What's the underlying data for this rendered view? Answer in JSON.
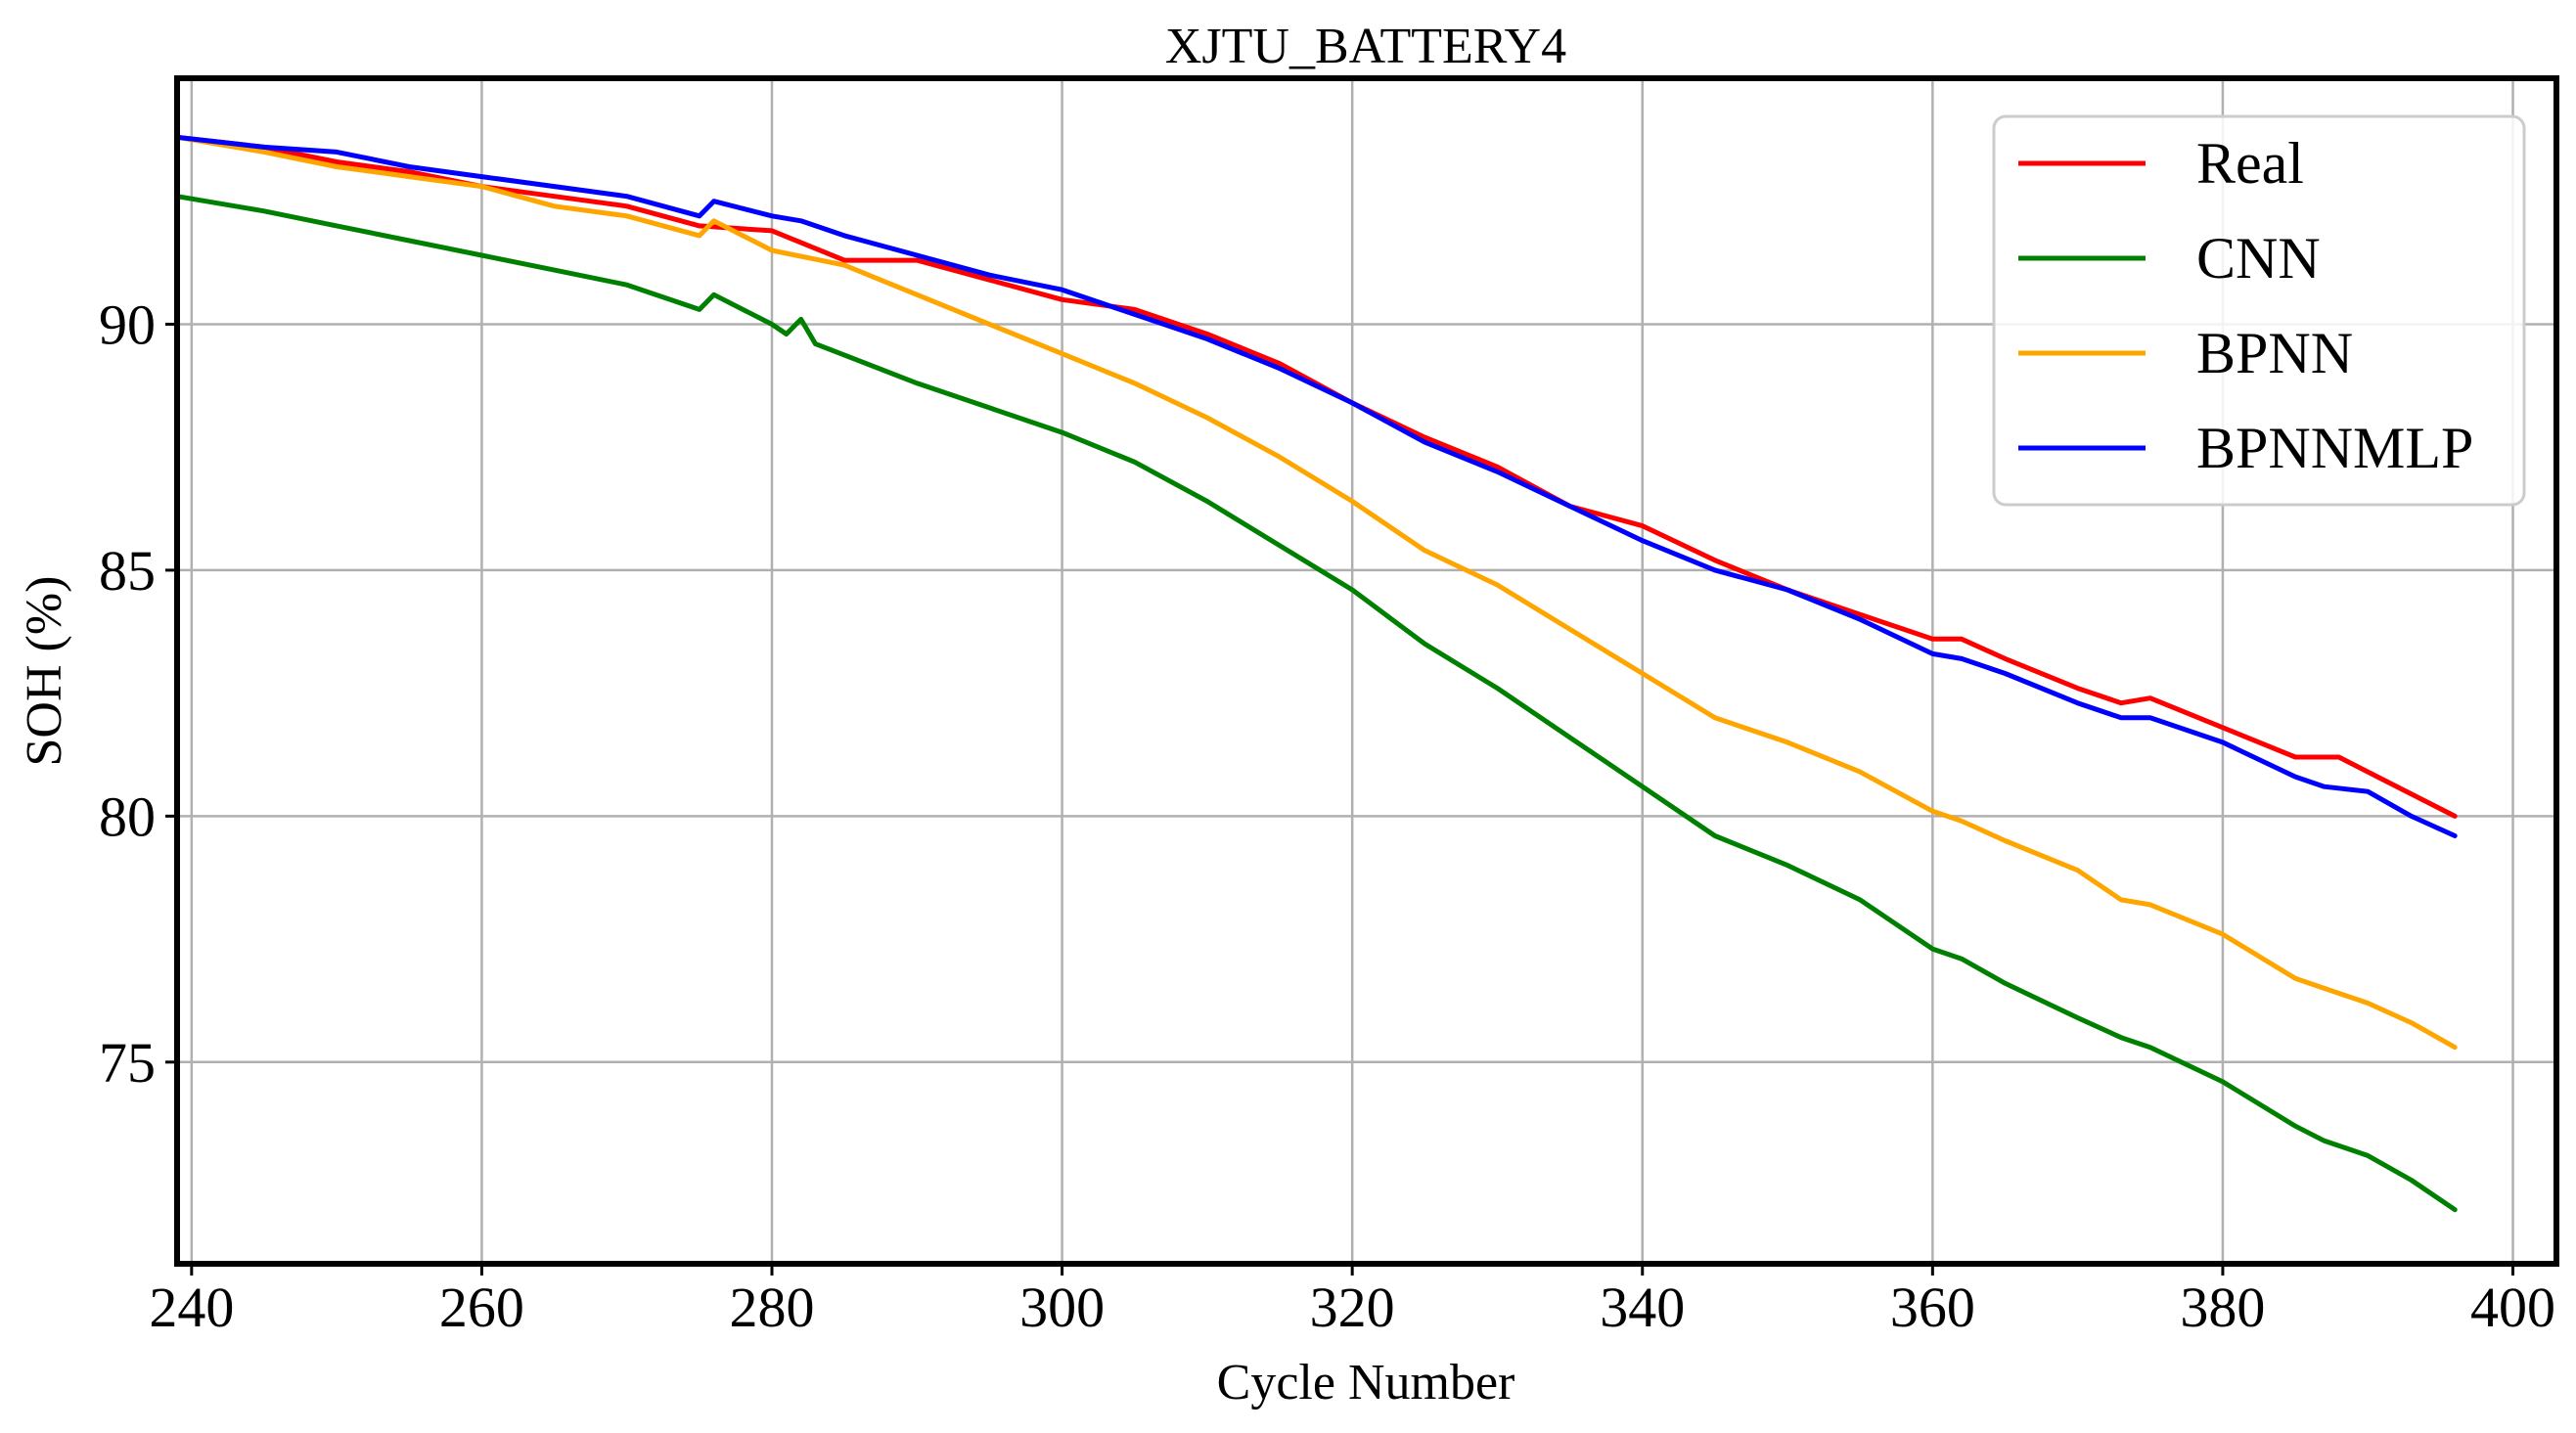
{
  "chart_data": {
    "type": "line",
    "title": "XJTU_BATTERY4",
    "xlabel": "Cycle Number",
    "ylabel": "SOH (%)",
    "xlim": [
      239,
      403
    ],
    "ylim": [
      70.9,
      95
    ],
    "xticks": [
      240,
      260,
      280,
      300,
      320,
      340,
      360,
      380,
      400
    ],
    "yticks": [
      75,
      80,
      85,
      90
    ],
    "grid": true,
    "legend_position": "top-right",
    "series": [
      {
        "name": "Real",
        "color": "#ff0000",
        "points": [
          [
            239,
            93.8
          ],
          [
            245,
            93.6
          ],
          [
            250,
            93.3
          ],
          [
            255,
            93.1
          ],
          [
            260,
            92.8
          ],
          [
            265,
            92.6
          ],
          [
            270,
            92.4
          ],
          [
            275,
            92.0
          ],
          [
            280,
            91.9
          ],
          [
            285,
            91.3
          ],
          [
            290,
            91.3
          ],
          [
            295,
            90.9
          ],
          [
            300,
            90.5
          ],
          [
            305,
            90.3
          ],
          [
            310,
            89.8
          ],
          [
            315,
            89.2
          ],
          [
            320,
            88.4
          ],
          [
            325,
            87.7
          ],
          [
            330,
            87.1
          ],
          [
            335,
            86.3
          ],
          [
            340,
            85.9
          ],
          [
            345,
            85.2
          ],
          [
            350,
            84.6
          ],
          [
            355,
            84.1
          ],
          [
            360,
            83.6
          ],
          [
            362,
            83.6
          ],
          [
            365,
            83.2
          ],
          [
            370,
            82.6
          ],
          [
            373,
            82.3
          ],
          [
            375,
            82.4
          ],
          [
            380,
            81.8
          ],
          [
            385,
            81.2
          ],
          [
            388,
            81.2
          ],
          [
            390,
            80.9
          ],
          [
            396,
            80.0
          ]
        ]
      },
      {
        "name": "CNN",
        "color": "#008000",
        "points": [
          [
            239,
            92.6
          ],
          [
            245,
            92.3
          ],
          [
            250,
            92.0
          ],
          [
            255,
            91.7
          ],
          [
            260,
            91.4
          ],
          [
            265,
            91.1
          ],
          [
            270,
            90.8
          ],
          [
            275,
            90.3
          ],
          [
            276,
            90.6
          ],
          [
            280,
            90.0
          ],
          [
            281,
            89.8
          ],
          [
            282,
            90.1
          ],
          [
            283,
            89.6
          ],
          [
            290,
            88.8
          ],
          [
            295,
            88.3
          ],
          [
            300,
            87.8
          ],
          [
            305,
            87.2
          ],
          [
            310,
            86.4
          ],
          [
            315,
            85.5
          ],
          [
            320,
            84.6
          ],
          [
            325,
            83.5
          ],
          [
            330,
            82.6
          ],
          [
            335,
            81.6
          ],
          [
            340,
            80.6
          ],
          [
            345,
            79.6
          ],
          [
            350,
            79.0
          ],
          [
            355,
            78.3
          ],
          [
            360,
            77.3
          ],
          [
            362,
            77.1
          ],
          [
            365,
            76.6
          ],
          [
            370,
            75.9
          ],
          [
            373,
            75.5
          ],
          [
            375,
            75.3
          ],
          [
            380,
            74.6
          ],
          [
            385,
            73.7
          ],
          [
            387,
            73.4
          ],
          [
            390,
            73.1
          ],
          [
            393,
            72.6
          ],
          [
            396,
            72.0
          ]
        ]
      },
      {
        "name": "BPNN",
        "color": "#ffa500",
        "points": [
          [
            239,
            93.8
          ],
          [
            245,
            93.5
          ],
          [
            250,
            93.2
          ],
          [
            255,
            93.0
          ],
          [
            260,
            92.8
          ],
          [
            265,
            92.4
          ],
          [
            270,
            92.2
          ],
          [
            275,
            91.8
          ],
          [
            276,
            92.1
          ],
          [
            280,
            91.5
          ],
          [
            285,
            91.2
          ],
          [
            290,
            90.6
          ],
          [
            295,
            90.0
          ],
          [
            300,
            89.4
          ],
          [
            305,
            88.8
          ],
          [
            310,
            88.1
          ],
          [
            315,
            87.3
          ],
          [
            320,
            86.4
          ],
          [
            325,
            85.4
          ],
          [
            330,
            84.7
          ],
          [
            335,
            83.8
          ],
          [
            340,
            82.9
          ],
          [
            345,
            82.0
          ],
          [
            350,
            81.5
          ],
          [
            355,
            80.9
          ],
          [
            360,
            80.1
          ],
          [
            362,
            79.9
          ],
          [
            365,
            79.5
          ],
          [
            370,
            78.9
          ],
          [
            373,
            78.3
          ],
          [
            375,
            78.2
          ],
          [
            380,
            77.6
          ],
          [
            385,
            76.7
          ],
          [
            387,
            76.5
          ],
          [
            390,
            76.2
          ],
          [
            393,
            75.8
          ],
          [
            396,
            75.3
          ]
        ]
      },
      {
        "name": "BPNNMLP",
        "color": "#0000ff",
        "points": [
          [
            239,
            93.8
          ],
          [
            245,
            93.6
          ],
          [
            250,
            93.5
          ],
          [
            255,
            93.2
          ],
          [
            260,
            93.0
          ],
          [
            265,
            92.8
          ],
          [
            270,
            92.6
          ],
          [
            275,
            92.2
          ],
          [
            276,
            92.5
          ],
          [
            280,
            92.2
          ],
          [
            282,
            92.1
          ],
          [
            285,
            91.8
          ],
          [
            290,
            91.4
          ],
          [
            295,
            91.0
          ],
          [
            300,
            90.7
          ],
          [
            305,
            90.2
          ],
          [
            310,
            89.7
          ],
          [
            315,
            89.1
          ],
          [
            320,
            88.4
          ],
          [
            325,
            87.6
          ],
          [
            330,
            87.0
          ],
          [
            335,
            86.3
          ],
          [
            340,
            85.6
          ],
          [
            345,
            85.0
          ],
          [
            350,
            84.6
          ],
          [
            355,
            84.0
          ],
          [
            360,
            83.3
          ],
          [
            362,
            83.2
          ],
          [
            365,
            82.9
          ],
          [
            370,
            82.3
          ],
          [
            373,
            82.0
          ],
          [
            375,
            82.0
          ],
          [
            380,
            81.5
          ],
          [
            385,
            80.8
          ],
          [
            387,
            80.6
          ],
          [
            390,
            80.5
          ],
          [
            393,
            80.0
          ],
          [
            396,
            79.6
          ]
        ]
      }
    ]
  }
}
